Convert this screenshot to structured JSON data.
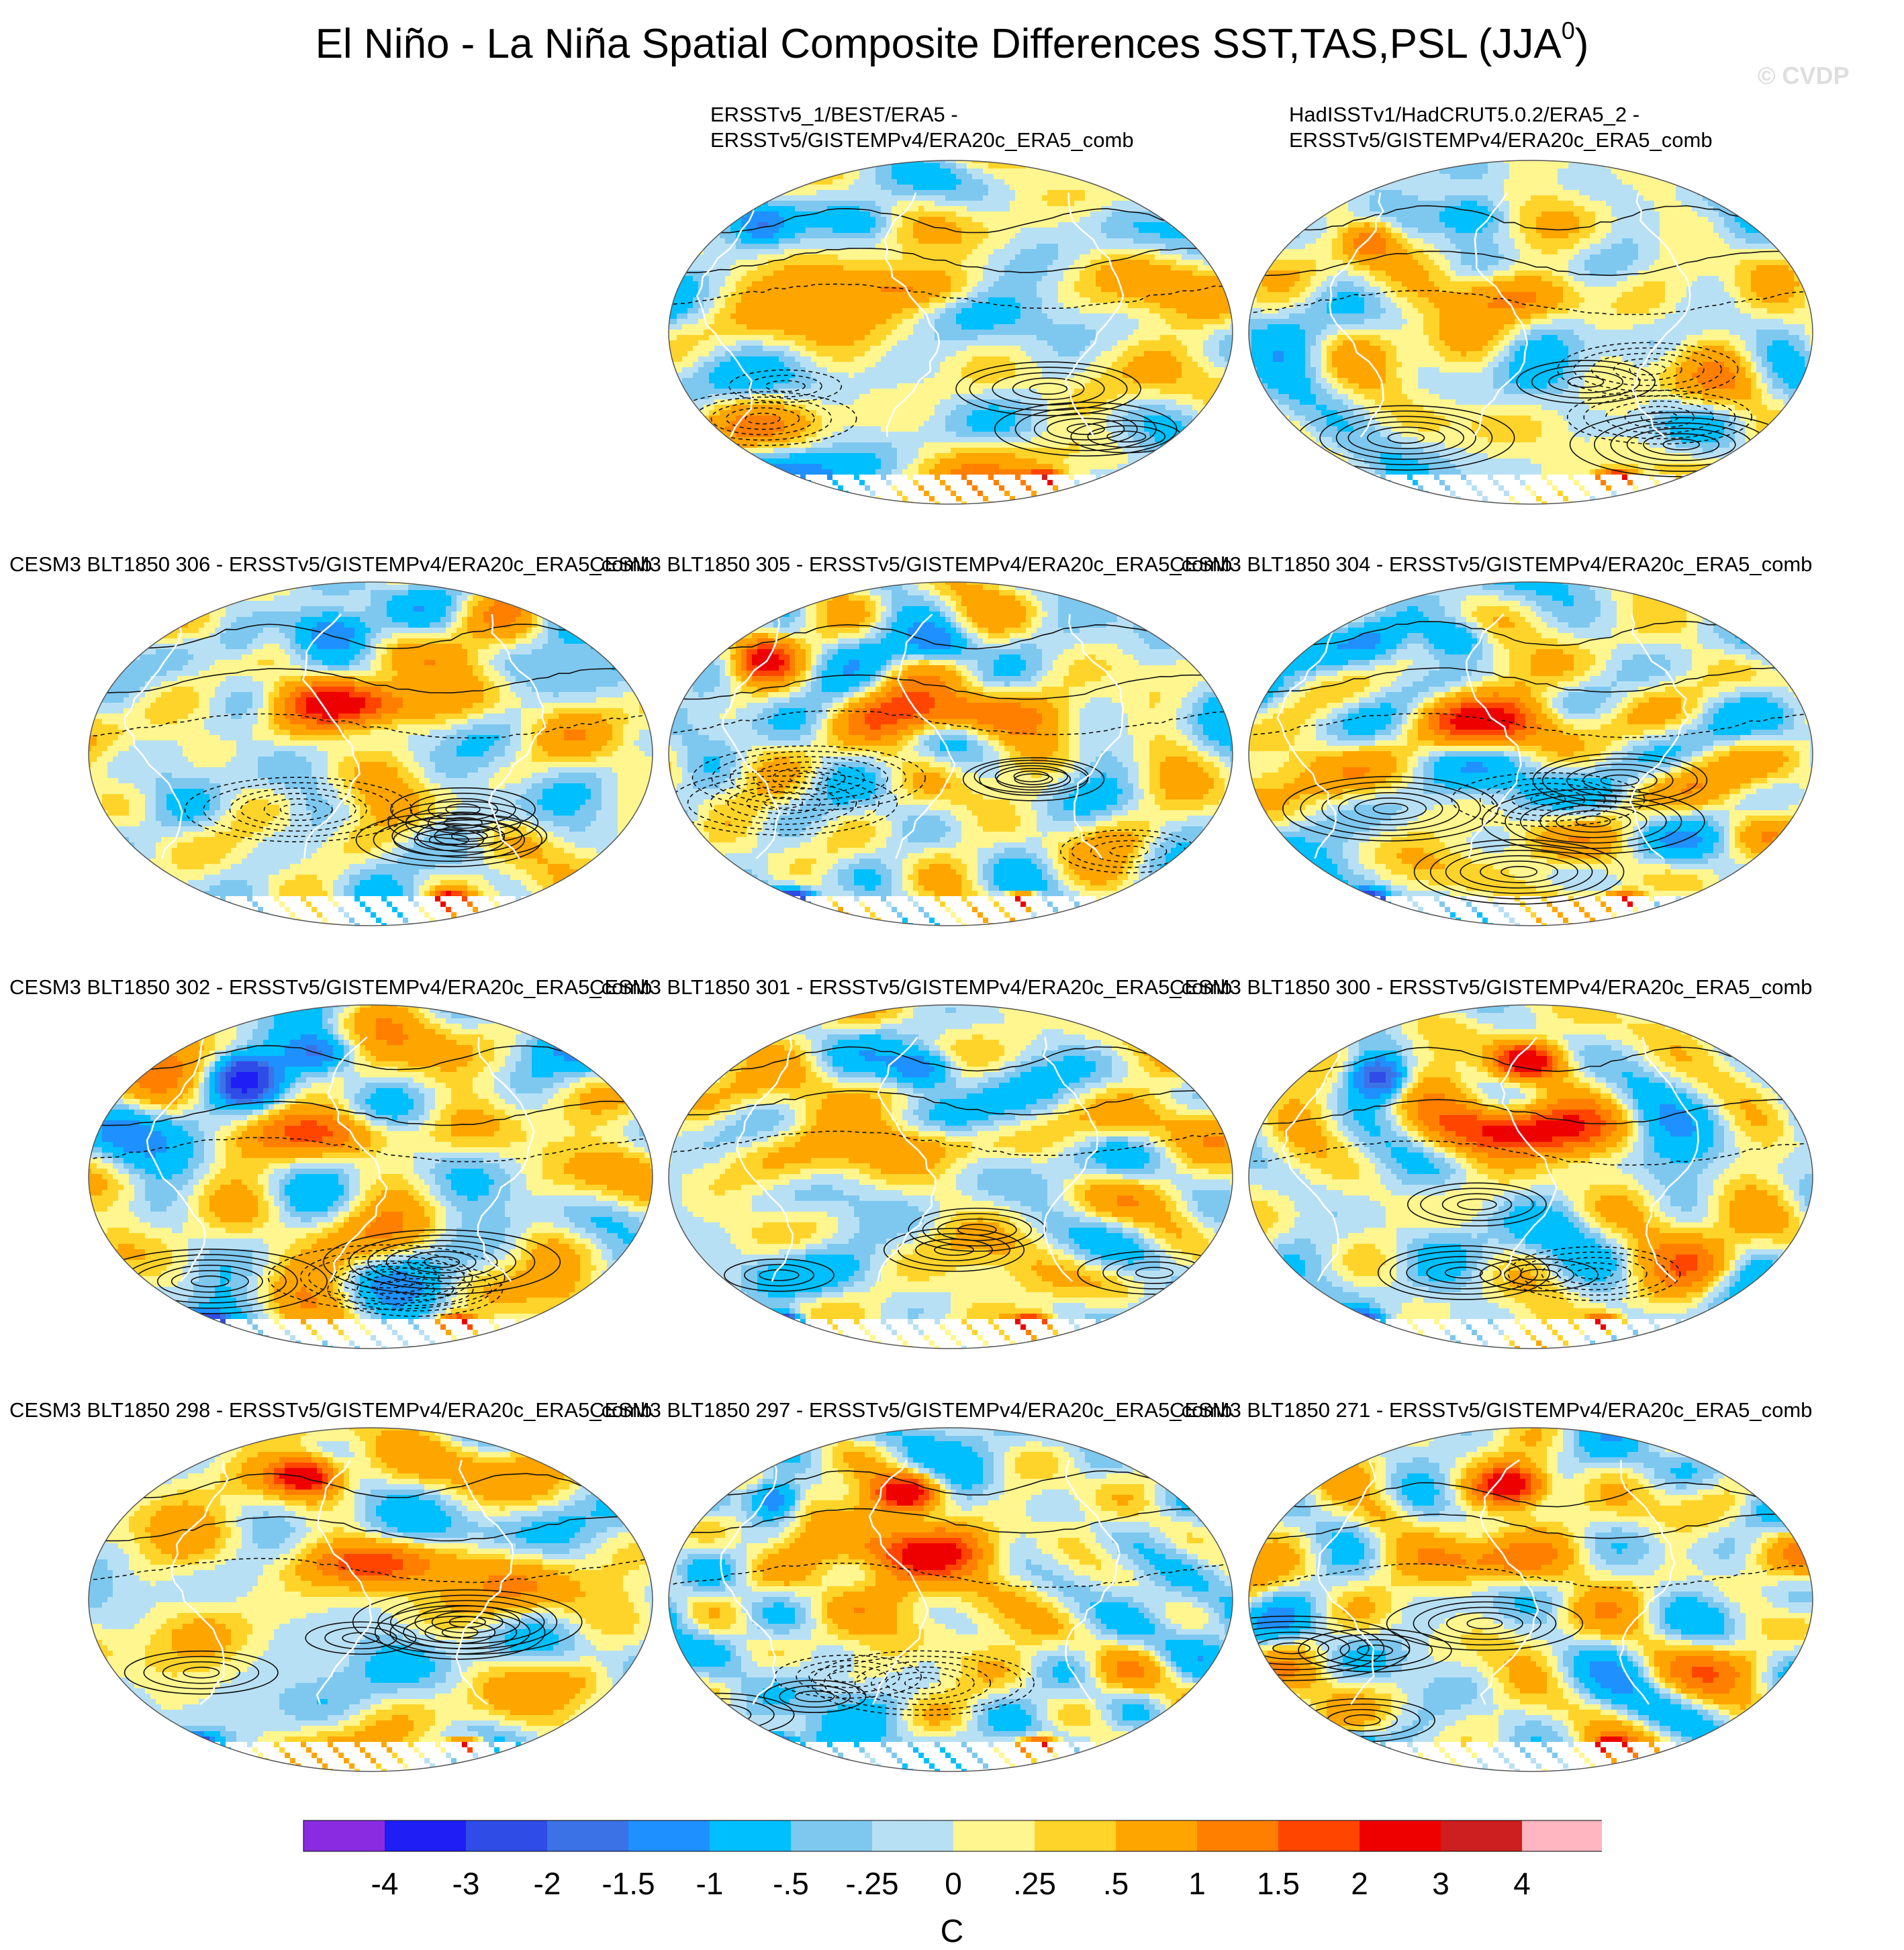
{
  "title": {
    "main": "El Niño - La Niña Spatial Composite Differences SST,TAS,PSL (JJA",
    "superscript": "0",
    "closing": ")"
  },
  "watermark": "© CVDP",
  "chart_data": [
    {
      "type": "heatmap",
      "name_line1": "ERSSTv5_1/BEST/ERA5 -",
      "name_line2": "ERSSTv5/GISTEMPv4/ERA20c_ERA5_comb"
    },
    {
      "type": "heatmap",
      "name_line1": "HadISSTv1/HadCRUT5.0.2/ERA5_2 -",
      "name_line2": "ERSSTv5/GISTEMPv4/ERA20c_ERA5_comb"
    },
    {
      "type": "heatmap",
      "name_line1": "CESM3 BLT1850 306 - ERSSTv5/GISTEMPv4/ERA20c_ERA5_comb"
    },
    {
      "type": "heatmap",
      "name_line1": "CESM3 BLT1850 305 - ERSSTv5/GISTEMPv4/ERA20c_ERA5_comb"
    },
    {
      "type": "heatmap",
      "name_line1": "CESM3 BLT1850 304 - ERSSTv5/GISTEMPv4/ERA20c_ERA5_comb"
    },
    {
      "type": "heatmap",
      "name_line1": "CESM3 BLT1850 302 - ERSSTv5/GISTEMPv4/ERA20c_ERA5_comb"
    },
    {
      "type": "heatmap",
      "name_line1": "CESM3 BLT1850 301 - ERSSTv5/GISTEMPv4/ERA20c_ERA5_comb"
    },
    {
      "type": "heatmap",
      "name_line1": "CESM3 BLT1850 300 - ERSSTv5/GISTEMPv4/ERA20c_ERA5_comb"
    },
    {
      "type": "heatmap",
      "name_line1": "CESM3 BLT1850 298 - ERSSTv5/GISTEMPv4/ERA20c_ERA5_comb"
    },
    {
      "type": "heatmap",
      "name_line1": "CESM3 BLT1850 297 - ERSSTv5/GISTEMPv4/ERA20c_ERA5_comb"
    },
    {
      "type": "heatmap",
      "name_line1": "CESM3 BLT1850 271 - ERSSTv5/GISTEMPv4/ERA20c_ERA5_comb"
    }
  ],
  "colorbar": {
    "colors": [
      "#8a2be2",
      "#1e1ef5",
      "#2f4ce6",
      "#3b73e6",
      "#1e90ff",
      "#00bfff",
      "#7ec8f0",
      "#b8e0f4",
      "#fff68f",
      "#ffd42a",
      "#ffa500",
      "#ff7f00",
      "#ff4500",
      "#ee0000",
      "#cd1f1f",
      "#ffb6c1"
    ],
    "labels": [
      "-4",
      "-3",
      "-2",
      "-1.5",
      "-1",
      "-.5",
      "-.25",
      "0",
      ".25",
      ".5",
      "1",
      "1.5",
      "2",
      "3",
      "4"
    ],
    "unit": "C"
  }
}
